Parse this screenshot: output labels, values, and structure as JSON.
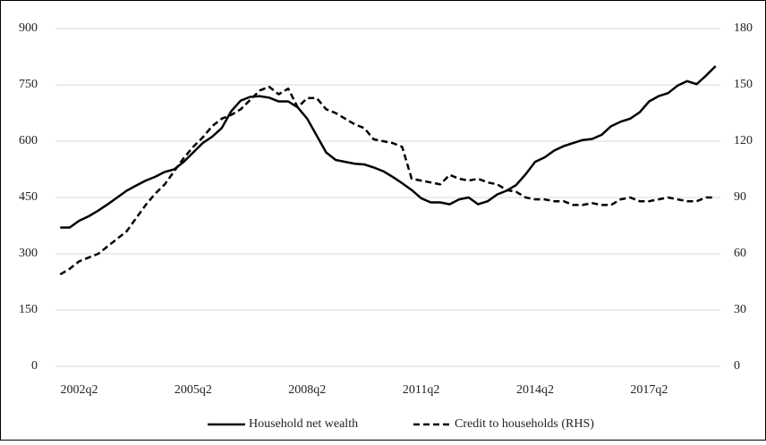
{
  "chart_data": {
    "type": "line",
    "categories": [
      null,
      null,
      "2002q2",
      null,
      null,
      null,
      null,
      null,
      null,
      null,
      null,
      null,
      null,
      null,
      "2005q2",
      null,
      null,
      null,
      null,
      null,
      null,
      null,
      null,
      null,
      null,
      null,
      "2008q2",
      null,
      null,
      null,
      null,
      null,
      null,
      null,
      null,
      null,
      null,
      null,
      "2011q2",
      null,
      null,
      null,
      null,
      null,
      null,
      null,
      null,
      null,
      null,
      null,
      "2014q2",
      null,
      null,
      null,
      null,
      null,
      null,
      null,
      null,
      null,
      null,
      null,
      "2017q2",
      null,
      null,
      null,
      null,
      null,
      null,
      null
    ],
    "series": [
      {
        "name": "Household net wealth",
        "color": "#000000",
        "dash": false,
        "values": [
          370,
          370,
          388,
          400,
          415,
          432,
          450,
          468,
          482,
          495,
          505,
          518,
          525,
          545,
          570,
          595,
          612,
          635,
          680,
          708,
          718,
          720,
          716,
          706,
          706,
          690,
          660,
          615,
          570,
          550,
          545,
          540,
          538,
          530,
          520,
          505,
          488,
          470,
          448,
          437,
          437,
          432,
          445,
          450,
          432,
          440,
          458,
          468,
          483,
          512,
          545,
          557,
          575,
          587,
          595,
          603,
          606,
          617,
          640,
          652,
          660,
          677,
          706,
          720,
          728,
          748,
          760,
          752,
          775,
          800
        ]
      },
      {
        "name": "Credit to households (RHS)",
        "color": "#000000",
        "dash": true,
        "axis": "y2",
        "values": [
          49,
          52,
          56,
          58,
          60,
          64,
          68,
          72,
          79,
          86,
          92,
          97,
          104,
          111,
          117,
          122,
          128,
          132,
          134,
          137,
          142,
          147,
          149,
          145,
          148,
          138,
          143,
          143,
          137,
          135,
          132,
          129,
          127,
          121,
          120,
          119,
          117,
          100,
          99,
          98,
          97,
          102,
          100,
          99,
          100,
          98,
          97,
          94,
          93,
          90,
          89,
          89,
          88,
          88,
          86,
          86,
          87,
          86,
          86,
          89,
          90,
          88,
          88,
          89,
          90,
          89,
          88,
          88,
          90,
          90
        ]
      }
    ],
    "ylim": [
      0,
      900
    ],
    "yticks": [
      0,
      150,
      300,
      450,
      600,
      750,
      900
    ],
    "y2lim": [
      0,
      180
    ],
    "y2ticks": [
      0,
      30,
      60,
      90,
      120,
      150,
      180
    ],
    "grid": true,
    "legend": "bottom"
  }
}
